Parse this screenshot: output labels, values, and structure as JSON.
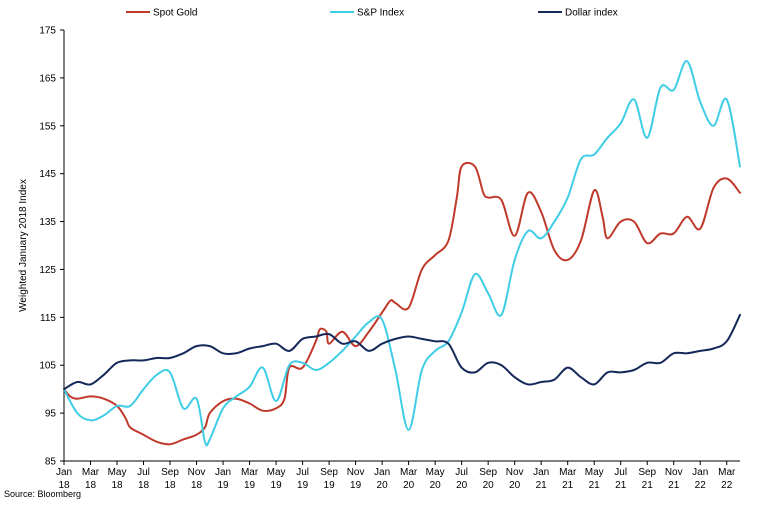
{
  "chart_data": {
    "type": "line",
    "title": "",
    "xlabel": "",
    "ylabel": "Weighted January 2018 Index",
    "ylim": [
      85,
      175
    ],
    "yticks": [
      85,
      95,
      105,
      115,
      125,
      135,
      145,
      155,
      165,
      175
    ],
    "grid": false,
    "legend": "top",
    "x_ticks": [
      {
        "month": "Jan",
        "year": "18"
      },
      {
        "month": "Mar",
        "year": "18"
      },
      {
        "month": "May",
        "year": "18"
      },
      {
        "month": "Jul",
        "year": "18"
      },
      {
        "month": "Sep",
        "year": "18"
      },
      {
        "month": "Nov",
        "year": "18"
      },
      {
        "month": "Jan",
        "year": "19"
      },
      {
        "month": "Mar",
        "year": "19"
      },
      {
        "month": "May",
        "year": "19"
      },
      {
        "month": "Jul",
        "year": "19"
      },
      {
        "month": "Sep",
        "year": "19"
      },
      {
        "month": "Nov",
        "year": "19"
      },
      {
        "month": "Jan",
        "year": "20"
      },
      {
        "month": "Mar",
        "year": "20"
      },
      {
        "month": "May",
        "year": "20"
      },
      {
        "month": "Jul",
        "year": "20"
      },
      {
        "month": "Sep",
        "year": "20"
      },
      {
        "month": "Nov",
        "year": "20"
      },
      {
        "month": "Jan",
        "year": "21"
      },
      {
        "month": "Mar",
        "year": "21"
      },
      {
        "month": "May",
        "year": "21"
      },
      {
        "month": "Jul",
        "year": "21"
      },
      {
        "month": "Sep",
        "year": "21"
      },
      {
        "month": "Nov",
        "year": "21"
      },
      {
        "month": "Jan",
        "year": "22"
      },
      {
        "month": "Mar",
        "year": "22"
      }
    ],
    "x_range": [
      "2018-01",
      "2022-04"
    ],
    "series": [
      {
        "name": "Spot Gold",
        "color": "#c0392b",
        "points": [
          [
            "2018-01",
            100
          ],
          [
            "2018-01-15",
            98.5
          ],
          [
            "2018-02",
            98
          ],
          [
            "2018-03",
            98.5
          ],
          [
            "2018-04",
            98
          ],
          [
            "2018-05",
            96.5
          ],
          [
            "2018-05-20",
            94
          ],
          [
            "2018-06",
            92
          ],
          [
            "2018-07",
            90.5
          ],
          [
            "2018-08",
            89
          ],
          [
            "2018-09",
            88.5
          ],
          [
            "2018-10",
            89.5
          ],
          [
            "2018-11",
            90.5
          ],
          [
            "2018-11-20",
            92
          ],
          [
            "2018-12",
            95
          ],
          [
            "2019-01",
            97.5
          ],
          [
            "2019-02",
            98
          ],
          [
            "2019-03",
            97
          ],
          [
            "2019-04",
            95.5
          ],
          [
            "2019-05",
            96
          ],
          [
            "2019-05-20",
            98
          ],
          [
            "2019-06",
            104.5
          ],
          [
            "2019-07",
            104.5
          ],
          [
            "2019-08",
            110
          ],
          [
            "2019-08-10",
            112.5
          ],
          [
            "2019-08-25",
            112
          ],
          [
            "2019-09",
            109.5
          ],
          [
            "2019-10",
            112
          ],
          [
            "2019-11",
            109
          ],
          [
            "2019-12",
            112
          ],
          [
            "2020-01",
            116
          ],
          [
            "2020-01-20",
            118.5
          ],
          [
            "2020-02",
            118
          ],
          [
            "2020-03",
            117
          ],
          [
            "2020-04",
            125
          ],
          [
            "2020-05",
            128
          ],
          [
            "2020-06",
            131
          ],
          [
            "2020-06-20",
            140
          ],
          [
            "2020-07",
            146.5
          ],
          [
            "2020-08",
            146.5
          ],
          [
            "2020-08-20",
            141
          ],
          [
            "2020-09",
            140
          ],
          [
            "2020-10",
            139.5
          ],
          [
            "2020-11",
            132
          ],
          [
            "2020-12",
            141
          ],
          [
            "2021-01",
            137
          ],
          [
            "2021-02",
            129
          ],
          [
            "2021-03",
            127
          ],
          [
            "2021-04",
            131
          ],
          [
            "2021-05",
            141.5
          ],
          [
            "2021-05-20",
            136
          ],
          [
            "2021-06",
            131.5
          ],
          [
            "2021-07",
            135
          ],
          [
            "2021-08",
            135
          ],
          [
            "2021-09",
            130.5
          ],
          [
            "2021-10",
            132.5
          ],
          [
            "2021-11",
            132.5
          ],
          [
            "2021-12",
            136
          ],
          [
            "2022-01",
            133.5
          ],
          [
            "2022-02",
            142
          ],
          [
            "2022-03",
            144
          ],
          [
            "2022-04",
            141
          ]
        ]
      },
      {
        "name": "S&P Index",
        "color": "#3fcde6",
        "points": [
          [
            "2018-01",
            100
          ],
          [
            "2018-02",
            95
          ],
          [
            "2018-03",
            93.5
          ],
          [
            "2018-04",
            94.5
          ],
          [
            "2018-05",
            96.5
          ],
          [
            "2018-06",
            96.5
          ],
          [
            "2018-07",
            100
          ],
          [
            "2018-08",
            103
          ],
          [
            "2018-09",
            103.5
          ],
          [
            "2018-10",
            96
          ],
          [
            "2018-11",
            98
          ],
          [
            "2018-11-20",
            89
          ],
          [
            "2018-12",
            89.5
          ],
          [
            "2019-01",
            96
          ],
          [
            "2019-02",
            98.5
          ],
          [
            "2019-03",
            100.5
          ],
          [
            "2019-04",
            104.5
          ],
          [
            "2019-05",
            97.5
          ],
          [
            "2019-06",
            105
          ],
          [
            "2019-07",
            105.5
          ],
          [
            "2019-08",
            104
          ],
          [
            "2019-09",
            105.5
          ],
          [
            "2019-10",
            108
          ],
          [
            "2019-11",
            111
          ],
          [
            "2019-12",
            114
          ],
          [
            "2020-01",
            114.5
          ],
          [
            "2020-02",
            104
          ],
          [
            "2020-03",
            91.5
          ],
          [
            "2020-04",
            104
          ],
          [
            "2020-05",
            108
          ],
          [
            "2020-06",
            110
          ],
          [
            "2020-07",
            116
          ],
          [
            "2020-08",
            124
          ],
          [
            "2020-09",
            120
          ],
          [
            "2020-10",
            115.5
          ],
          [
            "2020-11",
            127
          ],
          [
            "2020-12",
            133
          ],
          [
            "2021-01",
            131.5
          ],
          [
            "2021-02",
            135
          ],
          [
            "2021-03",
            140
          ],
          [
            "2021-04",
            148
          ],
          [
            "2021-05",
            149
          ],
          [
            "2021-06",
            152.5
          ],
          [
            "2021-07",
            155.5
          ],
          [
            "2021-08",
            160.5
          ],
          [
            "2021-09",
            152.5
          ],
          [
            "2021-10",
            163
          ],
          [
            "2021-11",
            162.5
          ],
          [
            "2021-12",
            168.5
          ],
          [
            "2022-01",
            160
          ],
          [
            "2022-02",
            155
          ],
          [
            "2022-03",
            160.5
          ],
          [
            "2022-04",
            146.5
          ]
        ]
      },
      {
        "name": "Dollar index",
        "color": "#14285a",
        "points": [
          [
            "2018-01",
            100
          ],
          [
            "2018-02",
            101.5
          ],
          [
            "2018-03",
            101
          ],
          [
            "2018-04",
            103
          ],
          [
            "2018-05",
            105.5
          ],
          [
            "2018-06",
            106
          ],
          [
            "2018-07",
            106
          ],
          [
            "2018-08",
            106.5
          ],
          [
            "2018-09",
            106.5
          ],
          [
            "2018-10",
            107.5
          ],
          [
            "2018-11",
            109
          ],
          [
            "2018-12",
            109
          ],
          [
            "2019-01",
            107.5
          ],
          [
            "2019-02",
            107.5
          ],
          [
            "2019-03",
            108.5
          ],
          [
            "2019-04",
            109
          ],
          [
            "2019-05",
            109.5
          ],
          [
            "2019-06",
            108
          ],
          [
            "2019-07",
            110.5
          ],
          [
            "2019-08",
            111
          ],
          [
            "2019-09",
            111.5
          ],
          [
            "2019-10",
            109.5
          ],
          [
            "2019-11",
            110
          ],
          [
            "2019-12",
            108
          ],
          [
            "2020-01",
            109.5
          ],
          [
            "2020-02",
            110.5
          ],
          [
            "2020-03",
            111
          ],
          [
            "2020-04",
            110.5
          ],
          [
            "2020-05",
            110
          ],
          [
            "2020-06",
            109.5
          ],
          [
            "2020-07",
            104.5
          ],
          [
            "2020-08",
            103.5
          ],
          [
            "2020-09",
            105.5
          ],
          [
            "2020-10",
            105
          ],
          [
            "2020-11",
            102.5
          ],
          [
            "2020-12",
            101
          ],
          [
            "2021-01",
            101.5
          ],
          [
            "2021-02",
            102
          ],
          [
            "2021-03",
            104.5
          ],
          [
            "2021-04",
            102.5
          ],
          [
            "2021-05",
            101
          ],
          [
            "2021-06",
            103.5
          ],
          [
            "2021-07",
            103.5
          ],
          [
            "2021-08",
            104
          ],
          [
            "2021-09",
            105.5
          ],
          [
            "2021-10",
            105.5
          ],
          [
            "2021-11",
            107.5
          ],
          [
            "2021-12",
            107.5
          ],
          [
            "2022-01",
            108
          ],
          [
            "2022-02",
            108.5
          ],
          [
            "2022-03",
            110
          ],
          [
            "2022-04",
            115.5
          ]
        ]
      }
    ]
  },
  "source_note": "Source: Bloomberg"
}
